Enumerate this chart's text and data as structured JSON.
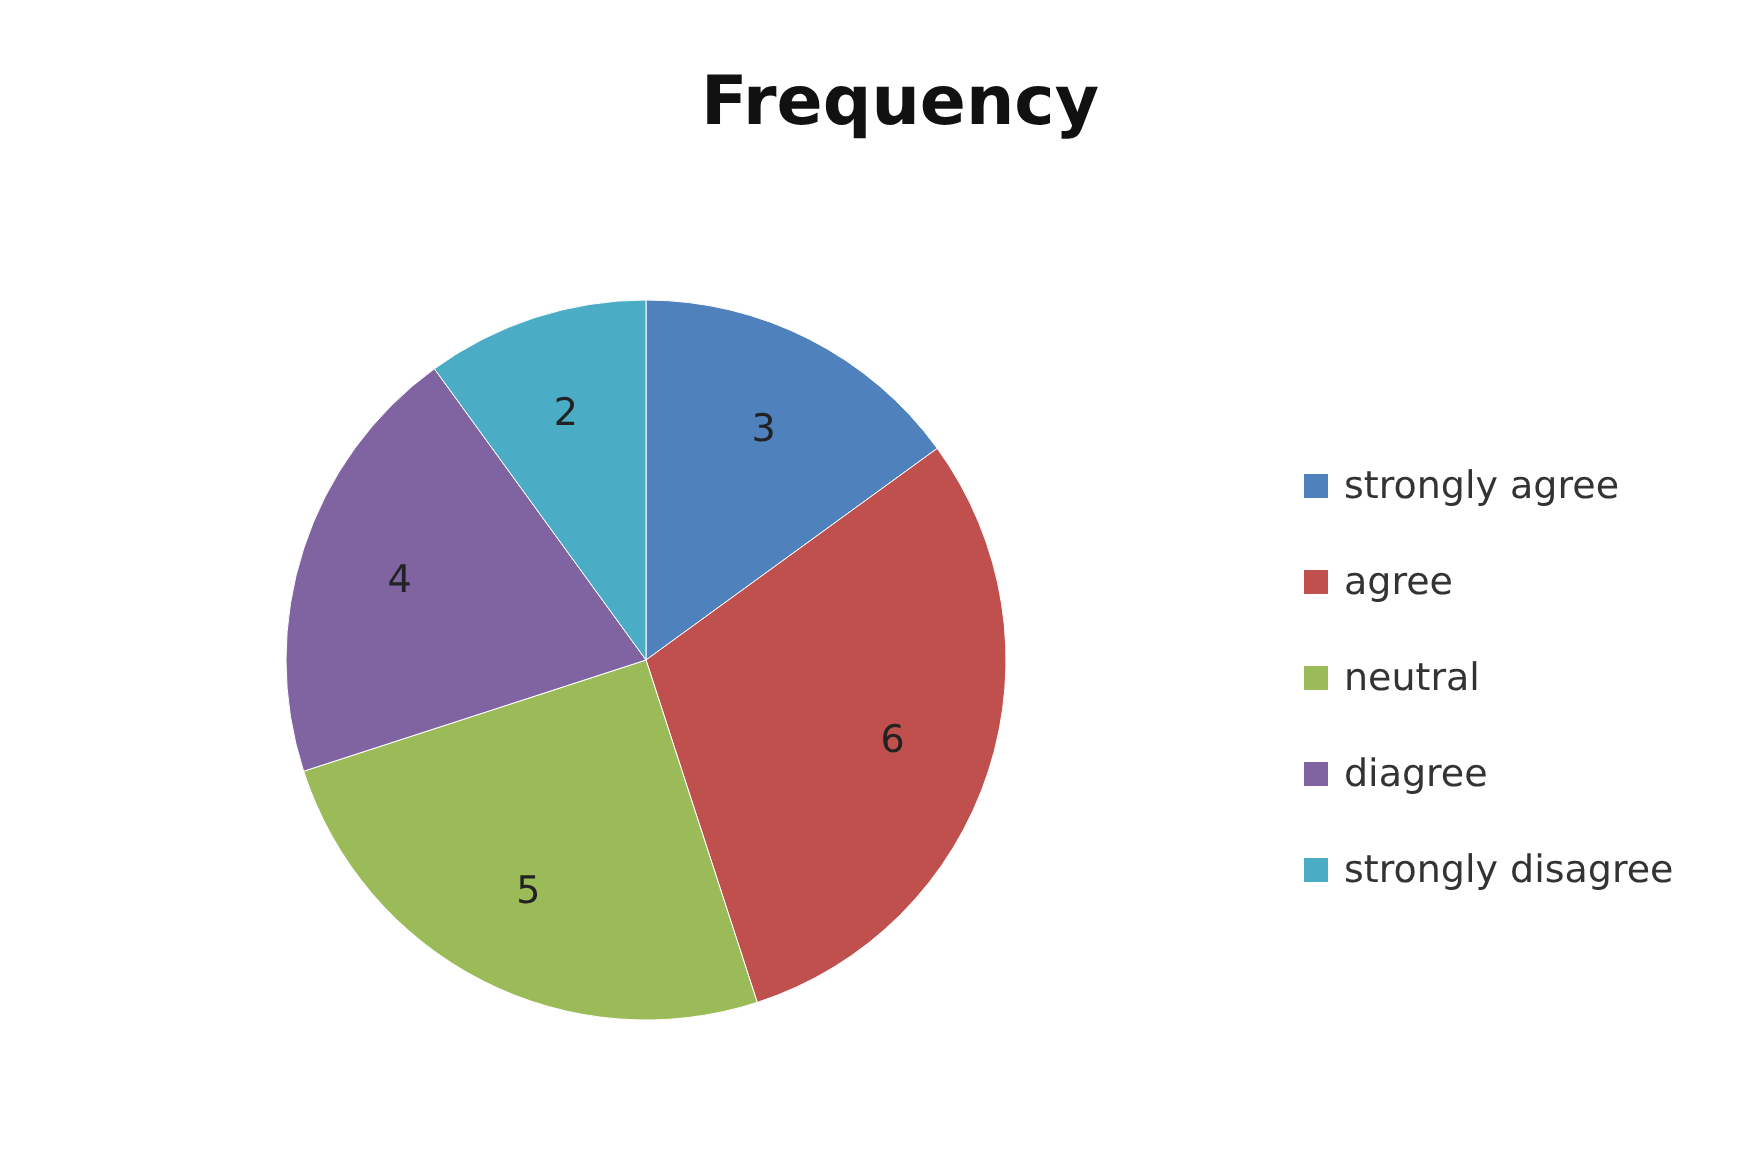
{
  "chart_data": {
    "type": "pie",
    "title": "Frequency",
    "categories": [
      "strongly agree",
      "agree",
      "neutral",
      "diagree",
      "strongly disagree"
    ],
    "values": [
      3,
      6,
      5,
      4,
      2
    ],
    "colors": [
      "#4f81bd",
      "#c0504d",
      "#9bbb59",
      "#8064a2",
      "#4bacc6"
    ],
    "data_labels": true,
    "legend": "right"
  }
}
